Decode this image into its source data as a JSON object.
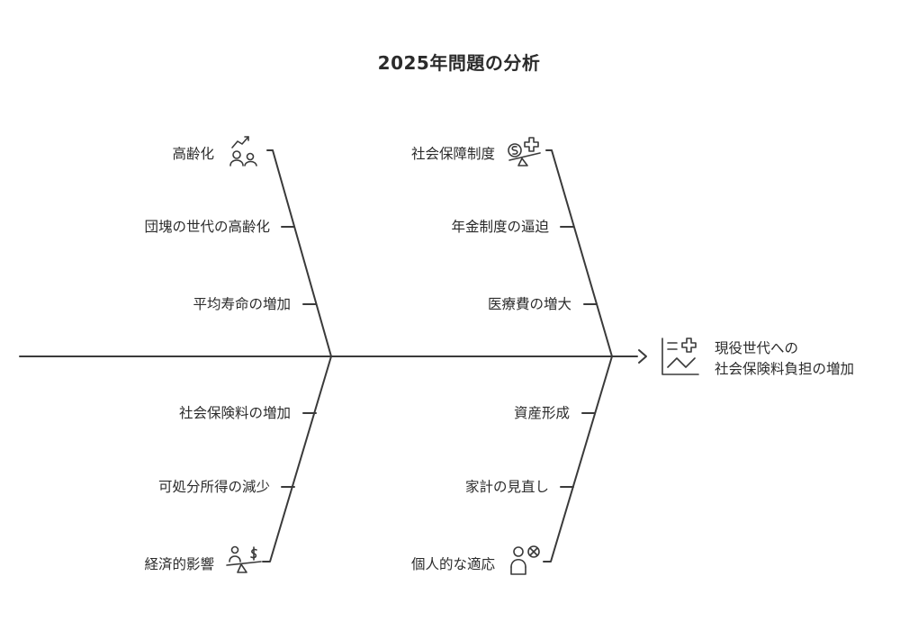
{
  "title": "2025年問題の分析",
  "effect": {
    "line1": "現役世代への",
    "line2": "社会保険料負担の増加",
    "icon": "chart-health-icon"
  },
  "bones": {
    "upper_left": {
      "head": "高齢化",
      "head_icon": "trend-people-icon",
      "causes": [
        "団塊の世代の高齢化",
        "平均寿命の増加"
      ]
    },
    "upper_right": {
      "head": "社会保障制度",
      "head_icon": "money-health-scale-icon",
      "causes": [
        "年金制度の逼迫",
        "医療費の増大"
      ]
    },
    "lower_left": {
      "head": "経済的影響",
      "head_icon": "person-money-scale-icon",
      "causes": [
        "社会保険料の増加",
        "可処分所得の減少"
      ]
    },
    "lower_right": {
      "head": "個人的な適応",
      "head_icon": "person-cancel-icon",
      "causes": [
        "資産形成",
        "家計の見直し"
      ]
    }
  }
}
